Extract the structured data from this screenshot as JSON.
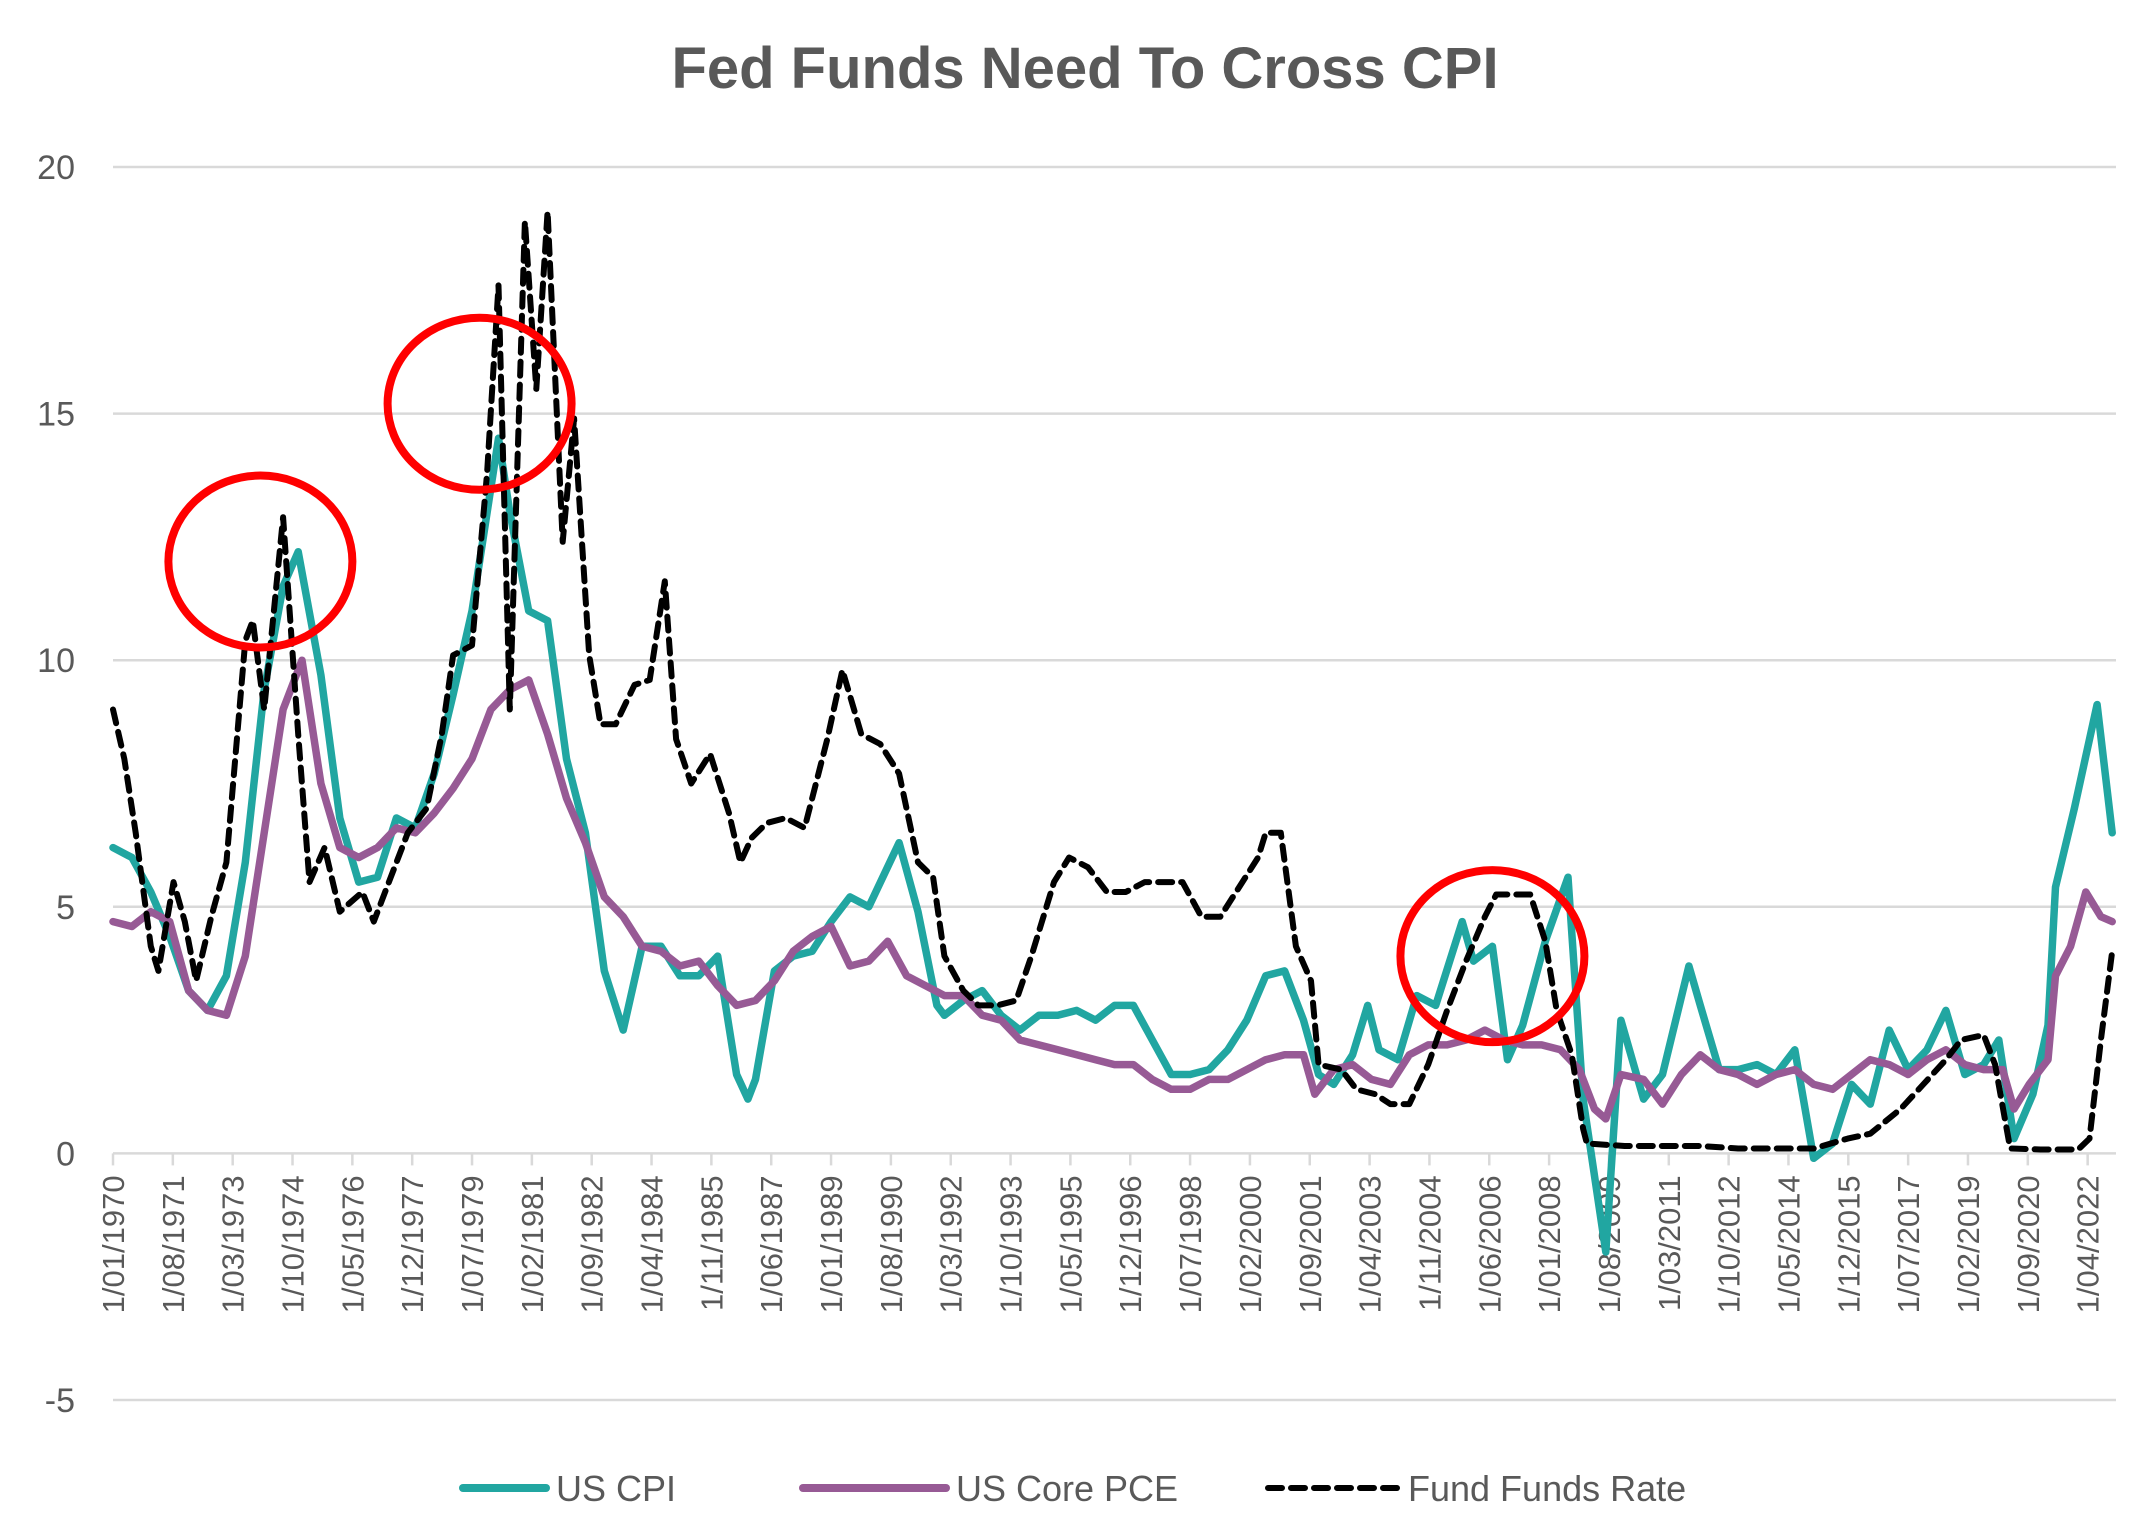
{
  "chart_data": {
    "type": "line",
    "title": "Fed Funds Need To Cross CPI",
    "xlabel": "",
    "ylabel": "",
    "ylim": [
      -5,
      20
    ],
    "yticks": [
      "20",
      "15",
      "10",
      "5",
      "0",
      "-5"
    ],
    "ytick_values": [
      20,
      15,
      10,
      5,
      0,
      -5
    ],
    "xlim_years": [
      1970.0,
      2023.0
    ],
    "grid": true,
    "legend_position": "bottom",
    "x_tick_labels": [
      "1/01/1970",
      "1/08/1971",
      "1/03/1973",
      "1/10/1974",
      "1/05/1976",
      "1/12/1977",
      "1/07/1979",
      "1/02/1981",
      "1/09/1982",
      "1/04/1984",
      "1/11/1985",
      "1/06/1987",
      "1/01/1989",
      "1/08/1990",
      "1/03/1992",
      "1/10/1993",
      "1/05/1995",
      "1/12/1996",
      "1/07/1998",
      "1/02/2000",
      "1/09/2001",
      "1/04/2003",
      "1/11/2004",
      "1/06/2006",
      "1/01/2008",
      "1/08/2009",
      "1/03/2011",
      "1/10/2012",
      "1/05/2014",
      "1/12/2015",
      "1/07/2017",
      "1/02/2019",
      "1/09/2020",
      "1/04/2022"
    ],
    "series": [
      {
        "name": "US CPI",
        "color": "#21a6a1",
        "style": "solid",
        "x": [
          1970.0,
          1970.5,
          1971.0,
          1971.5,
          1972.0,
          1972.5,
          1973.0,
          1973.5,
          1974.0,
          1974.5,
          1974.9,
          1975.5,
          1976.0,
          1976.5,
          1977.0,
          1977.5,
          1978.0,
          1978.5,
          1979.0,
          1979.5,
          1980.2,
          1980.5,
          1981.0,
          1981.5,
          1982.0,
          1982.5,
          1983.0,
          1983.5,
          1984.0,
          1984.5,
          1985.0,
          1985.5,
          1986.0,
          1986.5,
          1986.8,
          1987.0,
          1987.5,
          1988.0,
          1988.5,
          1989.0,
          1989.5,
          1990.0,
          1990.8,
          1991.3,
          1991.8,
          1992.0,
          1992.5,
          1993.0,
          1993.5,
          1994.0,
          1994.5,
          1995.0,
          1995.5,
          1996.0,
          1996.5,
          1997.0,
          1997.5,
          1998.0,
          1998.5,
          1999.0,
          1999.5,
          2000.0,
          2000.5,
          2001.0,
          2001.5,
          2001.9,
          2002.3,
          2002.8,
          2003.2,
          2003.5,
          2004.0,
          2004.5,
          2005.0,
          2005.7,
          2006.0,
          2006.5,
          2006.9,
          2007.3,
          2007.9,
          2008.5,
          2008.9,
          2009.5,
          2009.9,
          2010.5,
          2011.0,
          2011.7,
          2012.0,
          2012.5,
          2013.0,
          2013.5,
          2014.0,
          2014.5,
          2015.0,
          2015.5,
          2016.0,
          2016.5,
          2017.0,
          2017.5,
          2018.0,
          2018.5,
          2019.0,
          2019.5,
          2019.9,
          2020.3,
          2020.8,
          2021.2,
          2021.4,
          2021.9,
          2022.5,
          2022.9
        ],
        "values": [
          6.2,
          6.0,
          5.3,
          4.4,
          3.3,
          2.9,
          3.6,
          5.9,
          9.4,
          11.5,
          12.2,
          9.7,
          6.8,
          5.5,
          5.6,
          6.8,
          6.6,
          7.7,
          9.3,
          11.0,
          14.5,
          13.0,
          11.0,
          10.8,
          8.0,
          6.5,
          3.7,
          2.5,
          4.2,
          4.2,
          3.6,
          3.6,
          4.0,
          1.6,
          1.1,
          1.5,
          3.7,
          4.0,
          4.1,
          4.7,
          5.2,
          5.0,
          6.3,
          4.9,
          3.0,
          2.8,
          3.1,
          3.3,
          2.8,
          2.5,
          2.8,
          2.8,
          2.9,
          2.7,
          3.0,
          3.0,
          2.3,
          1.6,
          1.6,
          1.7,
          2.1,
          2.7,
          3.6,
          3.7,
          2.7,
          1.6,
          1.4,
          2.0,
          3.0,
          2.1,
          1.9,
          3.2,
          3.0,
          4.7,
          3.9,
          4.2,
          1.9,
          2.6,
          4.3,
          5.6,
          1.1,
          -2.0,
          2.7,
          1.1,
          1.6,
          3.8,
          3.0,
          1.7,
          1.7,
          1.8,
          1.6,
          2.1,
          -0.1,
          0.2,
          1.4,
          1.0,
          2.5,
          1.7,
          2.1,
          2.9,
          1.6,
          1.8,
          2.3,
          0.3,
          1.2,
          2.6,
          5.4,
          7.0,
          9.1,
          6.5
        ]
      },
      {
        "name": "US Core PCE",
        "color": "#975a95",
        "style": "solid",
        "x": [
          1970.0,
          1970.5,
          1971.0,
          1971.5,
          1972.0,
          1972.5,
          1973.0,
          1973.5,
          1974.0,
          1974.5,
          1975.0,
          1975.5,
          1976.0,
          1976.5,
          1977.0,
          1977.5,
          1978.0,
          1978.5,
          1979.0,
          1979.5,
          1980.0,
          1980.5,
          1981.0,
          1981.5,
          1982.0,
          1982.5,
          1983.0,
          1983.5,
          1984.0,
          1984.5,
          1985.0,
          1985.5,
          1986.0,
          1986.5,
          1987.0,
          1987.5,
          1988.0,
          1988.5,
          1989.0,
          1989.5,
          1990.0,
          1990.5,
          1991.0,
          1991.5,
          1992.0,
          1992.5,
          1993.0,
          1993.5,
          1994.0,
          1994.5,
          1995.0,
          1995.5,
          1996.0,
          1996.5,
          1997.0,
          1997.5,
          1998.0,
          1998.5,
          1999.0,
          1999.5,
          2000.0,
          2000.5,
          2001.0,
          2001.5,
          2001.8,
          2002.3,
          2002.8,
          2003.3,
          2003.8,
          2004.3,
          2004.8,
          2005.3,
          2005.8,
          2006.3,
          2006.8,
          2007.3,
          2007.8,
          2008.3,
          2008.8,
          2009.2,
          2009.5,
          2009.9,
          2010.5,
          2011.0,
          2011.5,
          2012.0,
          2012.5,
          2013.0,
          2013.5,
          2014.0,
          2014.5,
          2015.0,
          2015.5,
          2016.0,
          2016.5,
          2017.0,
          2017.5,
          2018.0,
          2018.5,
          2019.0,
          2019.5,
          2020.0,
          2020.3,
          2020.7,
          2021.2,
          2021.4,
          2021.8,
          2022.2,
          2022.6,
          2022.9
        ],
        "values": [
          4.7,
          4.6,
          4.9,
          4.7,
          3.3,
          2.9,
          2.8,
          4.0,
          6.5,
          9.0,
          10.0,
          7.5,
          6.2,
          6.0,
          6.2,
          6.6,
          6.5,
          6.9,
          7.4,
          8.0,
          9.0,
          9.4,
          9.6,
          8.5,
          7.2,
          6.3,
          5.2,
          4.8,
          4.2,
          4.1,
          3.8,
          3.9,
          3.4,
          3.0,
          3.1,
          3.5,
          4.1,
          4.4,
          4.6,
          3.8,
          3.9,
          4.3,
          3.6,
          3.4,
          3.2,
          3.2,
          2.8,
          2.7,
          2.3,
          2.2,
          2.1,
          2.0,
          1.9,
          1.8,
          1.8,
          1.5,
          1.3,
          1.3,
          1.5,
          1.5,
          1.7,
          1.9,
          2.0,
          2.0,
          1.2,
          1.7,
          1.8,
          1.5,
          1.4,
          2.0,
          2.2,
          2.2,
          2.3,
          2.5,
          2.3,
          2.2,
          2.2,
          2.1,
          1.7,
          0.9,
          0.7,
          1.6,
          1.5,
          1.0,
          1.6,
          2.0,
          1.7,
          1.6,
          1.4,
          1.6,
          1.7,
          1.4,
          1.3,
          1.6,
          1.9,
          1.8,
          1.6,
          1.9,
          2.1,
          1.8,
          1.7,
          1.7,
          0.9,
          1.4,
          1.9,
          3.6,
          4.2,
          5.3,
          4.8,
          4.7
        ]
      },
      {
        "name": "Fund Funds Rate",
        "color": "#000000",
        "style": "dashed",
        "x": [
          1970.0,
          1970.3,
          1970.6,
          1971.0,
          1971.2,
          1971.6,
          1971.9,
          1972.2,
          1972.6,
          1973.0,
          1973.5,
          1973.7,
          1974.0,
          1974.5,
          1974.9,
          1975.2,
          1975.6,
          1976.0,
          1976.6,
          1976.9,
          1977.3,
          1977.8,
          1978.3,
          1978.7,
          1979.0,
          1979.5,
          1979.9,
          1980.2,
          1980.5,
          1980.9,
          1981.2,
          1981.5,
          1981.9,
          1982.2,
          1982.6,
          1982.9,
          1983.3,
          1983.8,
          1984.2,
          1984.6,
          1984.9,
          1985.3,
          1985.8,
          1986.3,
          1986.6,
          1986.9,
          1987.3,
          1987.8,
          1988.3,
          1988.9,
          1989.3,
          1989.8,
          1990.3,
          1990.8,
          1991.3,
          1991.7,
          1992.0,
          1992.5,
          1992.9,
          1993.4,
          1993.9,
          1994.3,
          1994.9,
          1995.3,
          1995.8,
          1996.3,
          1996.8,
          1997.3,
          1997.8,
          1998.3,
          1998.8,
          1999.3,
          1999.8,
          2000.3,
          2000.5,
          2000.9,
          2001.3,
          2001.7,
          2001.9,
          2002.5,
          2002.9,
          2003.4,
          2003.8,
          2004.3,
          2004.8,
          2005.3,
          2005.8,
          2006.3,
          2006.6,
          2007.5,
          2007.9,
          2008.2,
          2008.6,
          2008.9,
          2009.0,
          2010.0,
          2011.0,
          2012.0,
          2013.0,
          2014.0,
          2015.0,
          2015.9,
          2016.5,
          2017.3,
          2017.9,
          2018.5,
          2018.9,
          2019.5,
          2019.8,
          2020.2,
          2021.0,
          2022.0,
          2022.3,
          2022.6,
          2022.9
        ],
        "values": [
          9.0,
          8.0,
          6.5,
          4.2,
          3.7,
          5.5,
          4.7,
          3.5,
          4.8,
          5.9,
          10.4,
          10.8,
          9.0,
          12.9,
          8.5,
          5.5,
          6.2,
          4.9,
          5.3,
          4.7,
          5.5,
          6.5,
          7.0,
          8.5,
          10.1,
          10.3,
          13.8,
          17.6,
          9.0,
          18.9,
          15.5,
          19.1,
          12.4,
          14.9,
          10.1,
          8.7,
          8.7,
          9.5,
          9.6,
          11.6,
          8.4,
          7.5,
          8.1,
          6.9,
          5.9,
          6.4,
          6.7,
          6.8,
          6.6,
          8.4,
          9.8,
          8.5,
          8.3,
          7.7,
          5.9,
          5.6,
          4.0,
          3.3,
          3.0,
          3.0,
          3.1,
          4.0,
          5.5,
          6.0,
          5.8,
          5.3,
          5.3,
          5.5,
          5.5,
          5.5,
          4.8,
          4.8,
          5.4,
          6.0,
          6.5,
          6.5,
          4.2,
          3.5,
          1.8,
          1.7,
          1.3,
          1.2,
          1.0,
          1.0,
          1.8,
          2.9,
          3.9,
          4.8,
          5.25,
          5.25,
          4.3,
          2.9,
          2.0,
          0.5,
          0.2,
          0.15,
          0.15,
          0.15,
          0.1,
          0.1,
          0.1,
          0.3,
          0.4,
          0.9,
          1.4,
          1.9,
          2.3,
          2.4,
          1.8,
          0.1,
          0.08,
          0.08,
          0.3,
          2.3,
          4.1
        ]
      }
    ],
    "annotations": [
      {
        "type": "ellipse",
        "color": "#ff0000",
        "center_year": 1973.9,
        "center_value": 12.0,
        "note": "red circle around 1973-74 peak"
      },
      {
        "type": "ellipse",
        "color": "#ff0000",
        "center_year": 1979.7,
        "center_value": 15.2,
        "note": "red circle around 1979-80 peak"
      },
      {
        "type": "ellipse",
        "color": "#ff0000",
        "center_year": 2006.5,
        "center_value": 4.0,
        "note": "red circle around 2006 peak"
      }
    ],
    "legend": [
      {
        "label": "US CPI",
        "color": "#21a6a1",
        "style": "solid"
      },
      {
        "label": "US Core PCE",
        "color": "#975a95",
        "style": "solid"
      },
      {
        "label": "Fund Funds Rate",
        "color": "#000000",
        "style": "dashed"
      }
    ]
  }
}
